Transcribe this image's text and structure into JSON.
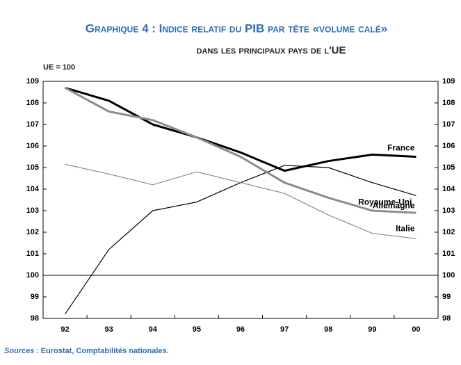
{
  "chart_data": {
    "type": "line",
    "title": "Graphique 4 : Indice relatif du PIB par tête «volume calé»",
    "subtitle": "dans les principaux pays de l'UE",
    "y_axis_label": "UE = 100",
    "source_label": "Sources",
    "source_text": " : Eurostat, Comptabilités nationales.",
    "categories": [
      "92",
      "93",
      "94",
      "95",
      "96",
      "97",
      "98",
      "99",
      "00"
    ],
    "series": [
      {
        "name": "France",
        "color": "#000000",
        "width": 3,
        "values": [
          108.7,
          108.1,
          107.0,
          106.4,
          105.7,
          104.85,
          105.3,
          105.6,
          105.5
        ]
      },
      {
        "name": "Royaume-Uni",
        "color": "#000000",
        "width": 1.2,
        "values": [
          98.2,
          101.2,
          103.0,
          103.4,
          104.3,
          105.1,
          105.0,
          104.3,
          103.7
        ]
      },
      {
        "name": "Allemagne",
        "color": "#8c8c8c",
        "width": 3,
        "values": [
          108.7,
          107.6,
          107.2,
          106.4,
          105.5,
          104.3,
          103.6,
          103.0,
          102.9
        ]
      },
      {
        "name": "Italie",
        "color": "#8c8c8c",
        "width": 1.2,
        "values": [
          105.15,
          104.7,
          104.2,
          104.8,
          104.3,
          103.8,
          102.8,
          101.95,
          101.7
        ]
      }
    ],
    "ylim": [
      98,
      109
    ],
    "yticks": [
      98,
      99,
      100,
      101,
      102,
      103,
      104,
      105,
      106,
      107,
      108,
      109
    ],
    "reference_line": 100
  }
}
